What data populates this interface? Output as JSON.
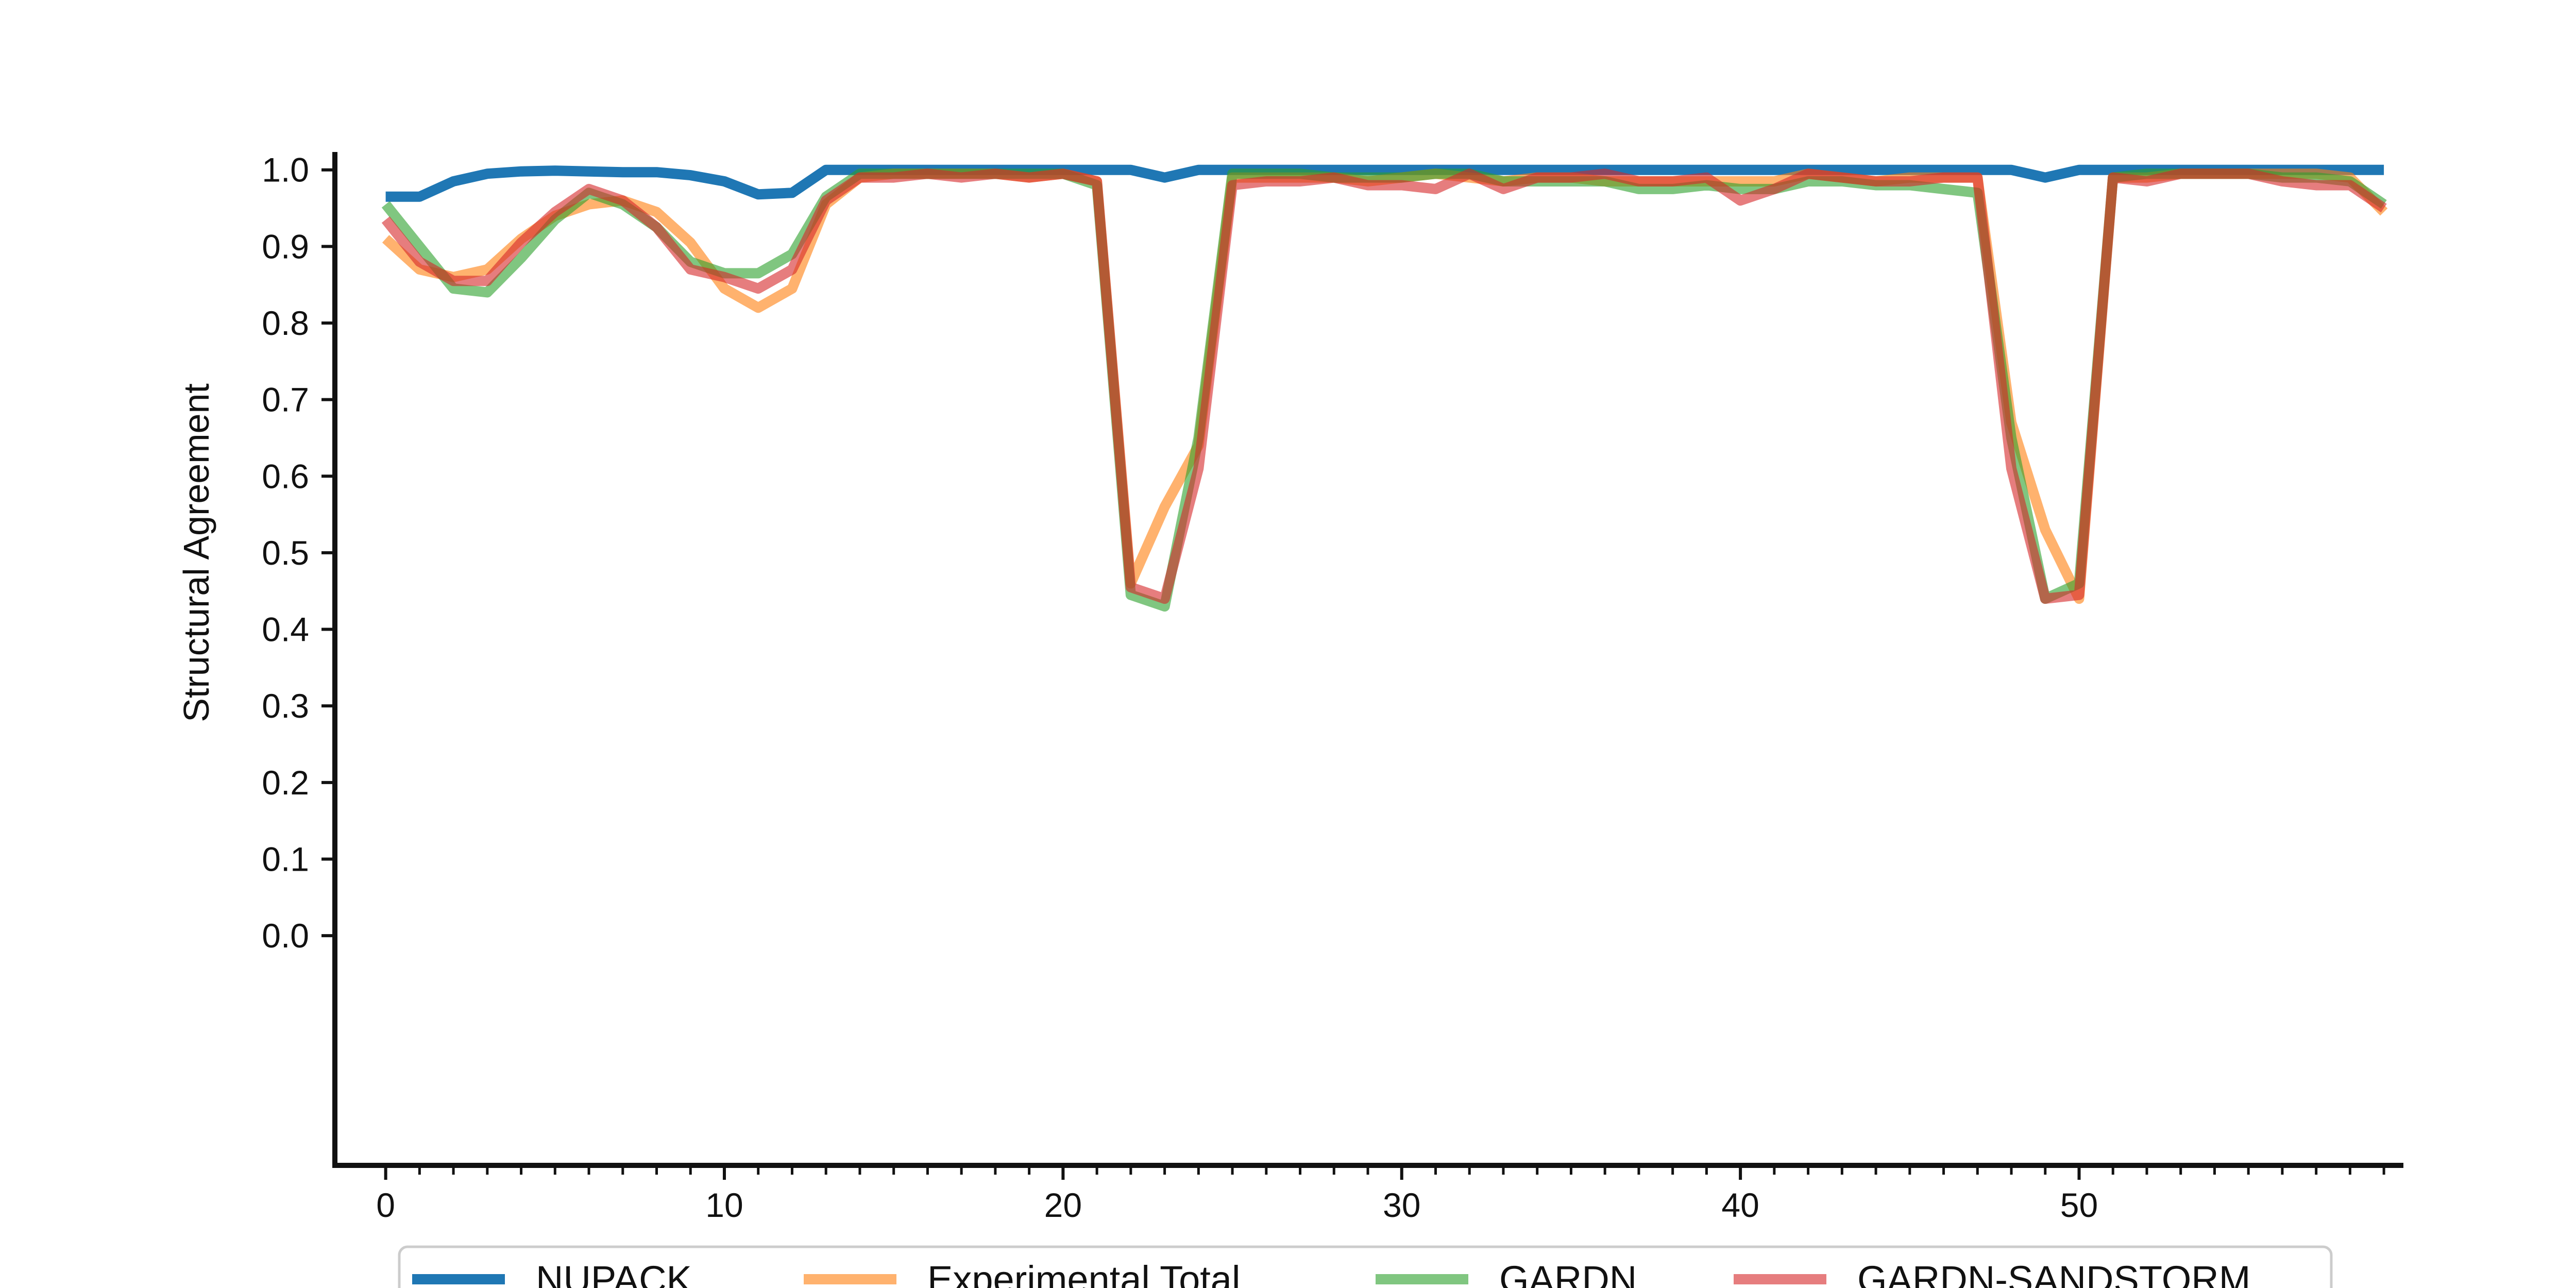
{
  "chart_data": {
    "type": "line",
    "title": "",
    "xlabel": "",
    "ylabel": "Structural Agreement",
    "xlim": [
      -1.5,
      59.5
    ],
    "ylim": [
      -0.3,
      1.02
    ],
    "x_ticks": [
      0,
      10,
      20,
      30,
      40,
      50
    ],
    "x_tick_labels": [
      "0",
      "10",
      "20",
      "30",
      "40",
      "50"
    ],
    "y_ticks": [
      0.0,
      0.1,
      0.2,
      0.3,
      0.4,
      0.5,
      0.6,
      0.7,
      0.8,
      0.9,
      1.0
    ],
    "y_tick_labels": [
      "0.0",
      "0.1",
      "0.2",
      "0.3",
      "0.4",
      "0.5",
      "0.6",
      "0.7",
      "0.8",
      "0.9",
      "1.0"
    ],
    "grid": false,
    "legend_position": "bottom-center",
    "x": [
      0,
      1,
      2,
      3,
      4,
      5,
      6,
      7,
      8,
      9,
      10,
      11,
      12,
      13,
      14,
      15,
      16,
      17,
      18,
      19,
      20,
      21,
      22,
      23,
      24,
      25,
      26,
      27,
      28,
      29,
      30,
      31,
      32,
      33,
      34,
      35,
      36,
      37,
      38,
      39,
      40,
      41,
      42,
      43,
      44,
      45,
      46,
      47,
      48,
      49,
      50,
      51,
      52,
      53,
      54,
      55,
      56,
      57,
      58,
      59
    ],
    "series": [
      {
        "name": "NUPACK",
        "color": "#1f77b4",
        "values": [
          0.965,
          0.965,
          0.985,
          0.995,
          0.998,
          0.999,
          0.998,
          0.997,
          0.997,
          0.993,
          0.985,
          0.968,
          0.97,
          1.0,
          1.0,
          1.0,
          1.0,
          1.0,
          1.0,
          1.0,
          1.0,
          1.0,
          1.0,
          0.99,
          1.0,
          1.0,
          1.0,
          1.0,
          1.0,
          1.0,
          1.0,
          1.0,
          1.0,
          1.0,
          1.0,
          1.0,
          1.0,
          1.0,
          1.0,
          1.0,
          1.0,
          1.0,
          1.0,
          1.0,
          1.0,
          1.0,
          1.0,
          1.0,
          1.0,
          0.99,
          1.0,
          1.0,
          1.0,
          1.0,
          1.0,
          1.0,
          1.0,
          1.0,
          1.0,
          1.0
        ]
      },
      {
        "name": "Experimental Total",
        "color": "#ff7f0e",
        "values": [
          0.91,
          0.87,
          0.86,
          0.87,
          0.91,
          0.94,
          0.955,
          0.96,
          0.945,
          0.905,
          0.845,
          0.82,
          0.845,
          0.955,
          0.99,
          0.995,
          0.995,
          0.995,
          0.995,
          0.99,
          0.995,
          0.985,
          0.46,
          0.56,
          0.64,
          0.99,
          0.99,
          0.99,
          0.99,
          0.985,
          0.99,
          0.995,
          0.99,
          0.985,
          0.99,
          0.99,
          0.985,
          0.985,
          0.985,
          0.985,
          0.985,
          0.985,
          0.995,
          0.99,
          0.985,
          0.99,
          0.99,
          0.99,
          0.67,
          0.53,
          0.44,
          0.99,
          0.99,
          0.995,
          0.995,
          0.995,
          0.995,
          0.995,
          0.99,
          0.945
        ]
      },
      {
        "name": "GARDN",
        "color": "#2ca02c",
        "values": [
          0.955,
          0.9,
          0.845,
          0.84,
          0.885,
          0.935,
          0.97,
          0.955,
          0.925,
          0.88,
          0.865,
          0.865,
          0.89,
          0.965,
          0.995,
          0.995,
          0.995,
          0.995,
          0.995,
          0.995,
          0.995,
          0.98,
          0.445,
          0.43,
          0.65,
          0.995,
          0.995,
          0.995,
          0.99,
          0.99,
          0.99,
          0.995,
          0.995,
          0.985,
          0.985,
          0.985,
          0.985,
          0.975,
          0.975,
          0.98,
          0.975,
          0.975,
          0.985,
          0.985,
          0.98,
          0.98,
          0.975,
          0.97,
          0.65,
          0.44,
          0.46,
          0.99,
          0.995,
          0.995,
          0.995,
          0.995,
          0.99,
          0.99,
          0.985,
          0.955
        ]
      },
      {
        "name": "GARDN-SANDSTORM",
        "color": "#d62728",
        "values": [
          0.935,
          0.88,
          0.855,
          0.855,
          0.905,
          0.945,
          0.975,
          0.96,
          0.925,
          0.87,
          0.86,
          0.845,
          0.87,
          0.96,
          0.99,
          0.99,
          0.995,
          0.99,
          0.995,
          0.99,
          0.995,
          0.985,
          0.455,
          0.44,
          0.61,
          0.98,
          0.985,
          0.985,
          0.99,
          0.98,
          0.98,
          0.975,
          0.995,
          0.975,
          0.99,
          0.99,
          0.995,
          0.985,
          0.985,
          0.99,
          0.96,
          0.975,
          0.995,
          0.99,
          0.985,
          0.985,
          0.99,
          0.99,
          0.61,
          0.44,
          0.445,
          0.99,
          0.985,
          0.995,
          0.995,
          0.995,
          0.985,
          0.98,
          0.98,
          0.95
        ]
      }
    ]
  }
}
